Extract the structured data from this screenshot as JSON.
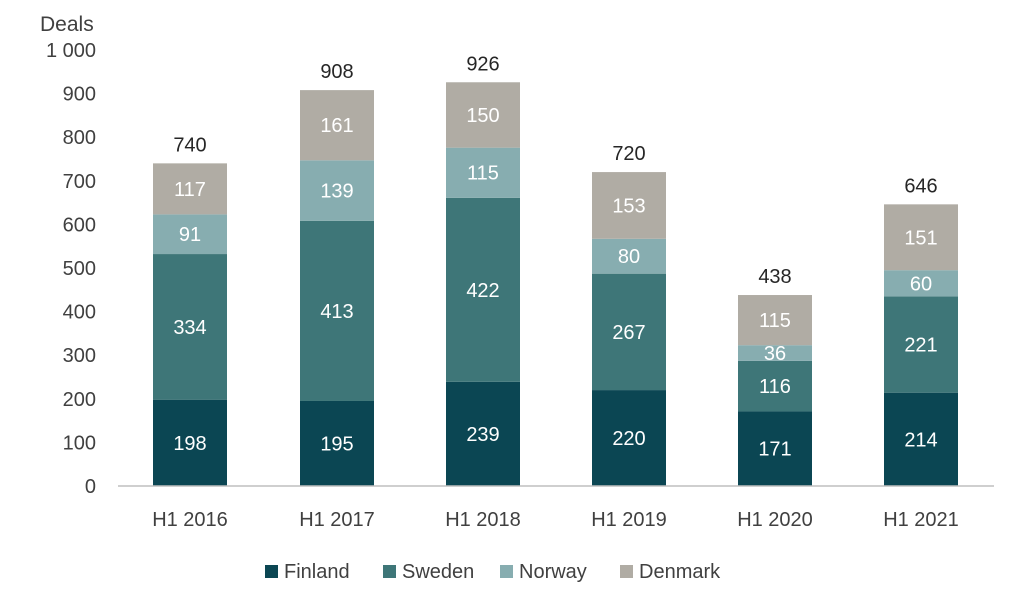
{
  "chart_data": {
    "type": "bar",
    "stacked": true,
    "ylabel": "Deals",
    "categories": [
      "H1 2016",
      "H1 2017",
      "H1 2018",
      "H1 2019",
      "H1 2020",
      "H1 2021"
    ],
    "series": [
      {
        "name": "Finland",
        "color": "#0b4653",
        "values": [
          198,
          195,
          239,
          220,
          171,
          214
        ]
      },
      {
        "name": "Sweden",
        "color": "#3e7678",
        "values": [
          334,
          413,
          422,
          267,
          116,
          221
        ]
      },
      {
        "name": "Norway",
        "color": "#87adb0",
        "values": [
          91,
          139,
          115,
          80,
          36,
          60
        ]
      },
      {
        "name": "Denmark",
        "color": "#b0aca4",
        "values": [
          117,
          161,
          150,
          153,
          115,
          151
        ]
      }
    ],
    "totals": [
      740,
      908,
      926,
      720,
      438,
      646
    ],
    "ylim": [
      0,
      1000
    ],
    "yticks": [
      0,
      100,
      200,
      300,
      400,
      500,
      600,
      700,
      800,
      900,
      1000
    ],
    "ytick_labels": [
      "0",
      "100",
      "200",
      "300",
      "400",
      "500",
      "600",
      "700",
      "800",
      "900",
      "1 000"
    ],
    "grid": false,
    "legend_position": "bottom"
  }
}
